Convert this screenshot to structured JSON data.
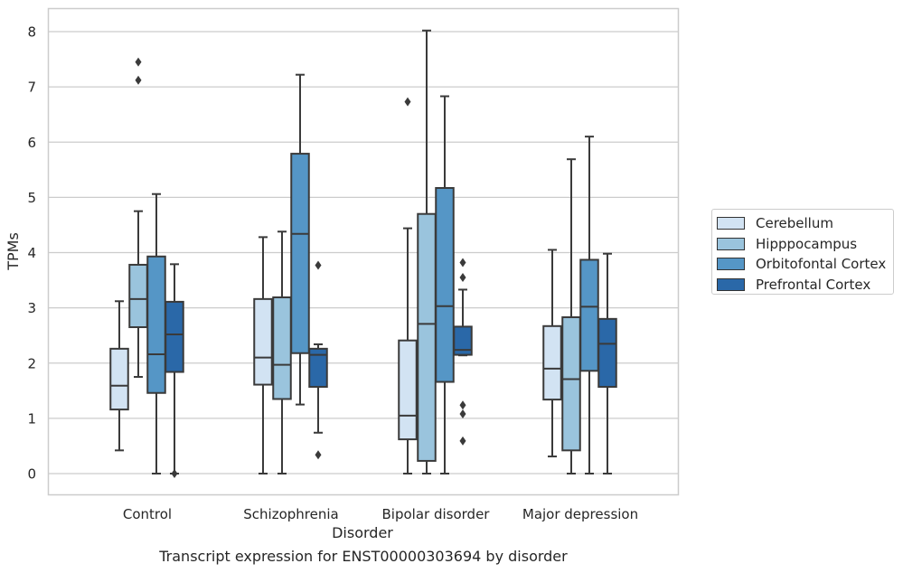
{
  "chart_data": {
    "type": "boxplot",
    "title": "Transcript expression for ENST00000303694 by disorder",
    "xlabel": "Disorder",
    "ylabel": "TPMs",
    "ylim": [
      -0.38,
      8.42
    ],
    "yticks": [
      "0",
      "1",
      "2",
      "3",
      "4",
      "5",
      "6",
      "7",
      "8"
    ],
    "grid": "horizontal",
    "legend_position": "right",
    "categories": [
      "Control",
      "Schizophrenia",
      "Bipolar disorder",
      "Major depression"
    ],
    "series": [
      {
        "name": "Cerebellum",
        "color": "#d2e3f3",
        "boxes": [
          {
            "min": 0.42,
            "q1": 1.16,
            "median": 1.59,
            "q3": 2.26,
            "max": 3.12,
            "outliers": []
          },
          {
            "min": 0.0,
            "q1": 1.61,
            "median": 2.1,
            "q3": 3.16,
            "max": 4.28,
            "outliers": []
          },
          {
            "min": 0.0,
            "q1": 0.62,
            "median": 1.05,
            "q3": 2.41,
            "max": 4.44,
            "outliers": [
              6.73
            ]
          },
          {
            "min": 0.31,
            "q1": 1.34,
            "median": 1.9,
            "q3": 2.67,
            "max": 4.05,
            "outliers": []
          }
        ]
      },
      {
        "name": "Hipppocampus",
        "color": "#9ac4dd",
        "boxes": [
          {
            "min": 1.75,
            "q1": 2.65,
            "median": 3.16,
            "q3": 3.78,
            "max": 4.75,
            "outliers": [
              7.12,
              7.45
            ]
          },
          {
            "min": 0.0,
            "q1": 1.35,
            "median": 1.97,
            "q3": 3.19,
            "max": 4.38,
            "outliers": []
          },
          {
            "min": 0.0,
            "q1": 0.23,
            "median": 2.71,
            "q3": 4.7,
            "max": 8.02,
            "outliers": []
          },
          {
            "min": 0.0,
            "q1": 0.42,
            "median": 1.71,
            "q3": 2.83,
            "max": 5.69,
            "outliers": []
          }
        ]
      },
      {
        "name": "Orbitofontal Cortex",
        "color": "#5596c6",
        "boxes": [
          {
            "min": 0.0,
            "q1": 1.46,
            "median": 2.16,
            "q3": 3.93,
            "max": 5.06,
            "outliers": []
          },
          {
            "min": 1.25,
            "q1": 2.18,
            "median": 4.34,
            "q3": 5.79,
            "max": 7.22,
            "outliers": []
          },
          {
            "min": 0.0,
            "q1": 1.66,
            "median": 3.03,
            "q3": 5.17,
            "max": 6.83,
            "outliers": []
          },
          {
            "min": 0.0,
            "q1": 1.86,
            "median": 3.02,
            "q3": 3.87,
            "max": 6.1,
            "outliers": []
          }
        ]
      },
      {
        "name": "Prefrontal Cortex",
        "color": "#2a68a8",
        "boxes": [
          {
            "min": 0.0,
            "q1": 1.84,
            "median": 2.52,
            "q3": 3.11,
            "max": 3.79,
            "outliers": [
              0.0
            ]
          },
          {
            "min": 0.74,
            "q1": 1.57,
            "median": 2.15,
            "q3": 2.26,
            "max": 2.34,
            "outliers": [
              0.34,
              3.77
            ]
          },
          {
            "min": 2.14,
            "q1": 2.15,
            "median": 2.24,
            "q3": 2.66,
            "max": 3.33,
            "outliers": [
              0.59,
              1.08,
              1.24,
              3.55,
              3.82
            ]
          },
          {
            "min": 0.0,
            "q1": 1.57,
            "median": 2.35,
            "q3": 2.8,
            "max": 3.98,
            "outliers": []
          }
        ]
      }
    ]
  }
}
